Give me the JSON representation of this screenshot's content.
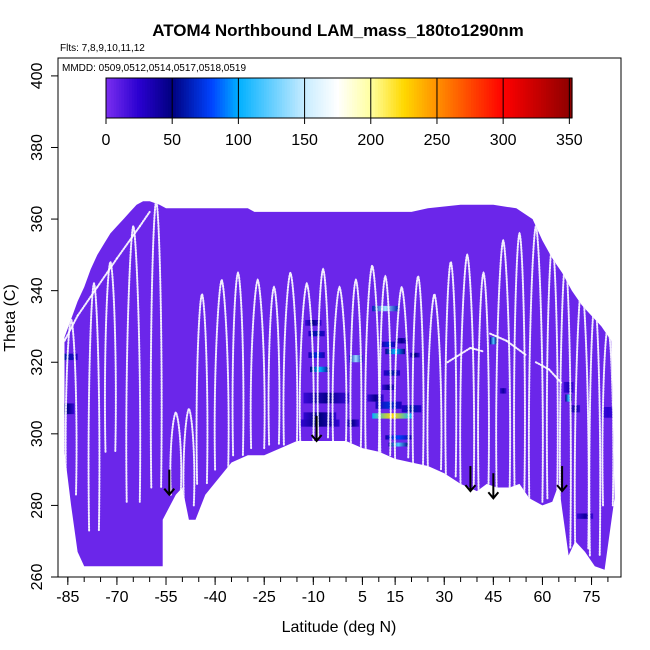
{
  "chart_data": {
    "type": "heatmap",
    "title": "ATOM4 Northbound LAM_mass_180to1290nm",
    "flights_label": "Flts: 7,8,9,10,11,12",
    "dates_label": "MMDD: 0509,0512,0514,0517,0518,0519",
    "xlabel": "Latitude (deg N)",
    "ylabel": "Theta (C)",
    "xlim": [
      -88,
      84
    ],
    "ylim": [
      260,
      405
    ],
    "x_ticks": [
      -85,
      -70,
      -55,
      -40,
      -25,
      -10,
      5,
      15,
      30,
      45,
      60,
      75
    ],
    "x_tick_labels": [
      "-85",
      "-70",
      "-55",
      "-40",
      "-25",
      "-10",
      "5",
      "15",
      "30",
      "45",
      "60",
      "75"
    ],
    "y_ticks": [
      260,
      280,
      300,
      320,
      340,
      360,
      380,
      400
    ],
    "y_tick_labels": [
      "260",
      "280",
      "300",
      "320",
      "340",
      "360",
      "380",
      "400"
    ],
    "colorbar": {
      "min": 0,
      "max": 352,
      "ticks": [
        0,
        50,
        100,
        150,
        200,
        250,
        300,
        350
      ],
      "tick_labels": [
        "0",
        "50",
        "100",
        "150",
        "200",
        "250",
        "300",
        "350"
      ],
      "stops": [
        {
          "v": 0,
          "color": "#7b2ff0"
        },
        {
          "v": 25,
          "color": "#2a00d0"
        },
        {
          "v": 50,
          "color": "#00007f"
        },
        {
          "v": 80,
          "color": "#0044ff"
        },
        {
          "v": 100,
          "color": "#00b0ff"
        },
        {
          "v": 150,
          "color": "#c8ecff"
        },
        {
          "v": 175,
          "color": "#ffffff"
        },
        {
          "v": 200,
          "color": "#ffffa0"
        },
        {
          "v": 225,
          "color": "#ffd800"
        },
        {
          "v": 250,
          "color": "#ff9000"
        },
        {
          "v": 300,
          "color": "#ff0000"
        },
        {
          "v": 352,
          "color": "#8b0000"
        }
      ]
    },
    "field": {
      "background_value": 5,
      "upper_boundary": [
        [
          -86,
          327
        ],
        [
          -84,
          332
        ],
        [
          -82,
          337
        ],
        [
          -80,
          341
        ],
        [
          -78,
          346
        ],
        [
          -76,
          350
        ],
        [
          -74,
          353
        ],
        [
          -72,
          356
        ],
        [
          -70,
          358
        ],
        [
          -68,
          360
        ],
        [
          -66,
          362
        ],
        [
          -64,
          364
        ],
        [
          -62,
          365
        ],
        [
          -60,
          365
        ],
        [
          -57,
          364
        ],
        [
          -55,
          363
        ],
        [
          -45,
          363
        ],
        [
          -35,
          363
        ],
        [
          -30,
          363
        ],
        [
          -28,
          362
        ],
        [
          -15,
          362
        ],
        [
          -5,
          362
        ],
        [
          10,
          362
        ],
        [
          20,
          362
        ],
        [
          25,
          363
        ],
        [
          35,
          364
        ],
        [
          45,
          364
        ],
        [
          52,
          363
        ],
        [
          57,
          360
        ],
        [
          60,
          354
        ],
        [
          63,
          349
        ],
        [
          66,
          345
        ],
        [
          69,
          340
        ],
        [
          72,
          336
        ],
        [
          75,
          333
        ],
        [
          78,
          330
        ],
        [
          81,
          326
        ]
      ],
      "lower_boundary": [
        [
          -86,
          295
        ],
        [
          -84,
          280
        ],
        [
          -82,
          267
        ],
        [
          -80,
          263
        ],
        [
          -56,
          263
        ],
        [
          -56,
          276
        ],
        [
          -52,
          283
        ],
        [
          -50,
          285
        ],
        [
          -48,
          276
        ],
        [
          -46,
          276
        ],
        [
          -43,
          283
        ],
        [
          -35,
          292
        ],
        [
          -30,
          294
        ],
        [
          -25,
          294
        ],
        [
          -20,
          296
        ],
        [
          -15,
          298
        ],
        [
          -10,
          298
        ],
        [
          -5,
          298
        ],
        [
          0,
          298
        ],
        [
          5,
          296
        ],
        [
          10,
          295
        ],
        [
          15,
          293
        ],
        [
          20,
          292
        ],
        [
          25,
          291
        ],
        [
          30,
          289
        ],
        [
          35,
          286
        ],
        [
          40,
          284
        ],
        [
          43,
          286
        ],
        [
          46,
          285
        ],
        [
          50,
          285
        ],
        [
          53,
          286
        ],
        [
          56,
          282
        ],
        [
          60,
          280
        ],
        [
          63,
          281
        ],
        [
          65,
          286
        ],
        [
          66,
          279
        ],
        [
          68,
          266
        ],
        [
          70,
          270
        ],
        [
          73,
          267
        ],
        [
          76,
          263
        ],
        [
          79,
          262
        ],
        [
          82,
          282
        ]
      ],
      "hotspots": [
        {
          "lat": -86,
          "theta": 321.5,
          "value": 60,
          "w": 8,
          "h": 1.8
        },
        {
          "lat": -85,
          "theta": 307,
          "value": 45,
          "w": 4,
          "h": 3
        },
        {
          "lat": -10,
          "theta": 331,
          "value": 45,
          "w": 5,
          "h": 1.6
        },
        {
          "lat": -9,
          "theta": 328,
          "value": 60,
          "w": 5,
          "h": 1.5
        },
        {
          "lat": -9,
          "theta": 322,
          "value": 70,
          "w": 5,
          "h": 1.6
        },
        {
          "lat": -8,
          "theta": 318,
          "value": 100,
          "w": 6,
          "h": 1.5
        },
        {
          "lat": 3,
          "theta": 321,
          "value": 140,
          "w": 4,
          "h": 2
        },
        {
          "lat": 12,
          "theta": 335,
          "value": 140,
          "w": 8,
          "h": 1.5
        },
        {
          "lat": 13,
          "theta": 325,
          "value": 70,
          "w": 4,
          "h": 1.5
        },
        {
          "lat": 14,
          "theta": 317,
          "value": 60,
          "w": 5,
          "h": 1.5
        },
        {
          "lat": 15,
          "theta": 323,
          "value": 100,
          "w": 6,
          "h": 1.5
        },
        {
          "lat": 17,
          "theta": 326,
          "value": 45,
          "w": 4,
          "h": 1.5
        },
        {
          "lat": 21,
          "theta": 322,
          "value": 50,
          "w": 3,
          "h": 1.3
        },
        {
          "lat": 13,
          "theta": 313,
          "value": 45,
          "w": 4,
          "h": 1.5
        },
        {
          "lat": -6,
          "theta": 310,
          "value": 45,
          "w": 14,
          "h": 3
        },
        {
          "lat": -8,
          "theta": 305,
          "value": 50,
          "w": 10,
          "h": 2
        },
        {
          "lat": -8,
          "theta": 303,
          "value": 50,
          "w": 12,
          "h": 2
        },
        {
          "lat": 2,
          "theta": 303,
          "value": 45,
          "w": 4,
          "h": 2
        },
        {
          "lat": 9,
          "theta": 310,
          "value": 45,
          "w": 5,
          "h": 2
        },
        {
          "lat": 13,
          "theta": 308,
          "value": 70,
          "w": 8,
          "h": 2
        },
        {
          "lat": 14,
          "theta": 305,
          "value": 225,
          "w": 12,
          "h": 1.5
        },
        {
          "lat": 16,
          "theta": 299,
          "value": 80,
          "w": 8,
          "h": 1.2
        },
        {
          "lat": 16,
          "theta": 297,
          "value": 120,
          "w": 6,
          "h": 1.1
        },
        {
          "lat": 20,
          "theta": 307,
          "value": 60,
          "w": 6,
          "h": 2
        },
        {
          "lat": 45,
          "theta": 326,
          "value": 120,
          "w": 2,
          "h": 2
        },
        {
          "lat": 48,
          "theta": 312,
          "value": 40,
          "w": 2,
          "h": 1.5
        },
        {
          "lat": 68,
          "theta": 313,
          "value": 30,
          "w": 3,
          "h": 3
        },
        {
          "lat": 68,
          "theta": 310,
          "value": 110,
          "w": 2,
          "h": 2
        },
        {
          "lat": 70,
          "theta": 307,
          "value": 40,
          "w": 3,
          "h": 2
        },
        {
          "lat": 73,
          "theta": 277,
          "value": 40,
          "w": 5,
          "h": 1.5
        },
        {
          "lat": 80,
          "theta": 306,
          "value": 25,
          "w": 3,
          "h": 3
        }
      ]
    },
    "tropopause_profiles": [
      {
        "lat": -84,
        "top": 332,
        "bottom": 283,
        "width": 1.5
      },
      {
        "lat": -77,
        "top": 342,
        "bottom": 273,
        "width": 1.5
      },
      {
        "lat": -72,
        "top": 348,
        "bottom": 295,
        "width": 1.5
      },
      {
        "lat": -65,
        "top": 358,
        "bottom": 281,
        "width": 2
      },
      {
        "lat": -58,
        "top": 365,
        "bottom": 285,
        "width": 1.5
      },
      {
        "lat": -52,
        "top": 306,
        "bottom": 283,
        "width": 1.5
      },
      {
        "lat": -48,
        "top": 307,
        "bottom": 280,
        "width": 1.5
      },
      {
        "lat": -44,
        "top": 339,
        "bottom": 286,
        "width": 1.5
      },
      {
        "lat": -38,
        "top": 343,
        "bottom": 290,
        "width": 2
      },
      {
        "lat": -33,
        "top": 345,
        "bottom": 294,
        "width": 1.5
      },
      {
        "lat": -27,
        "top": 343,
        "bottom": 296,
        "width": 2
      },
      {
        "lat": -22,
        "top": 341,
        "bottom": 297,
        "width": 1.5
      },
      {
        "lat": -17,
        "top": 345,
        "bottom": 297,
        "width": 2
      },
      {
        "lat": -12,
        "top": 342,
        "bottom": 298,
        "width": 2
      },
      {
        "lat": -7,
        "top": 346,
        "bottom": 299,
        "width": 1.5
      },
      {
        "lat": -2,
        "top": 341,
        "bottom": 298,
        "width": 2
      },
      {
        "lat": 3,
        "top": 343,
        "bottom": 296,
        "width": 1.5
      },
      {
        "lat": 8,
        "top": 347,
        "bottom": 295,
        "width": 2
      },
      {
        "lat": 12,
        "top": 344,
        "bottom": 294,
        "width": 1.5
      },
      {
        "lat": 17,
        "top": 341,
        "bottom": 293,
        "width": 2
      },
      {
        "lat": 22,
        "top": 344,
        "bottom": 291,
        "width": 1.5
      },
      {
        "lat": 27,
        "top": 339,
        "bottom": 290,
        "width": 2
      },
      {
        "lat": 32,
        "top": 348,
        "bottom": 288,
        "width": 1.5
      },
      {
        "lat": 37,
        "top": 350,
        "bottom": 285,
        "width": 2
      },
      {
        "lat": 42,
        "top": 345,
        "bottom": 284,
        "width": 1.5
      },
      {
        "lat": 48,
        "top": 354,
        "bottom": 285,
        "width": 2
      },
      {
        "lat": 53,
        "top": 356,
        "bottom": 284,
        "width": 1.5
      },
      {
        "lat": 58,
        "top": 358,
        "bottom": 281,
        "width": 2
      },
      {
        "lat": 63,
        "top": 353,
        "bottom": 282,
        "width": 1.5
      },
      {
        "lat": 67,
        "top": 348,
        "bottom": 268,
        "width": 1.5
      },
      {
        "lat": 72,
        "top": 342,
        "bottom": 268,
        "width": 2
      },
      {
        "lat": 76,
        "top": 337,
        "bottom": 266,
        "width": 1.5
      },
      {
        "lat": 80,
        "top": 330,
        "bottom": 280,
        "width": 1.5
      }
    ],
    "tropopause_jumps": [
      [
        -86,
        326,
        -82,
        333
      ],
      [
        -82,
        333,
        -76,
        341
      ],
      [
        -76,
        341,
        -70,
        349
      ],
      [
        -70,
        349,
        -63,
        358
      ],
      [
        -63,
        358,
        -60,
        362
      ],
      [
        31,
        320,
        38,
        324
      ],
      [
        38,
        324,
        42,
        323
      ],
      [
        44,
        328,
        49,
        326
      ],
      [
        49,
        326,
        55,
        322
      ],
      [
        58,
        320,
        62,
        318
      ],
      [
        62,
        318,
        66,
        314
      ]
    ],
    "arrows": [
      {
        "lat": -54,
        "theta_top": 290,
        "theta_bottom": 283
      },
      {
        "lat": -9,
        "theta_top": 305,
        "theta_bottom": 298
      },
      {
        "lat": 38,
        "theta_top": 291,
        "theta_bottom": 284
      },
      {
        "lat": 45,
        "theta_top": 289,
        "theta_bottom": 282
      },
      {
        "lat": 66,
        "theta_top": 291,
        "theta_bottom": 284
      }
    ]
  }
}
